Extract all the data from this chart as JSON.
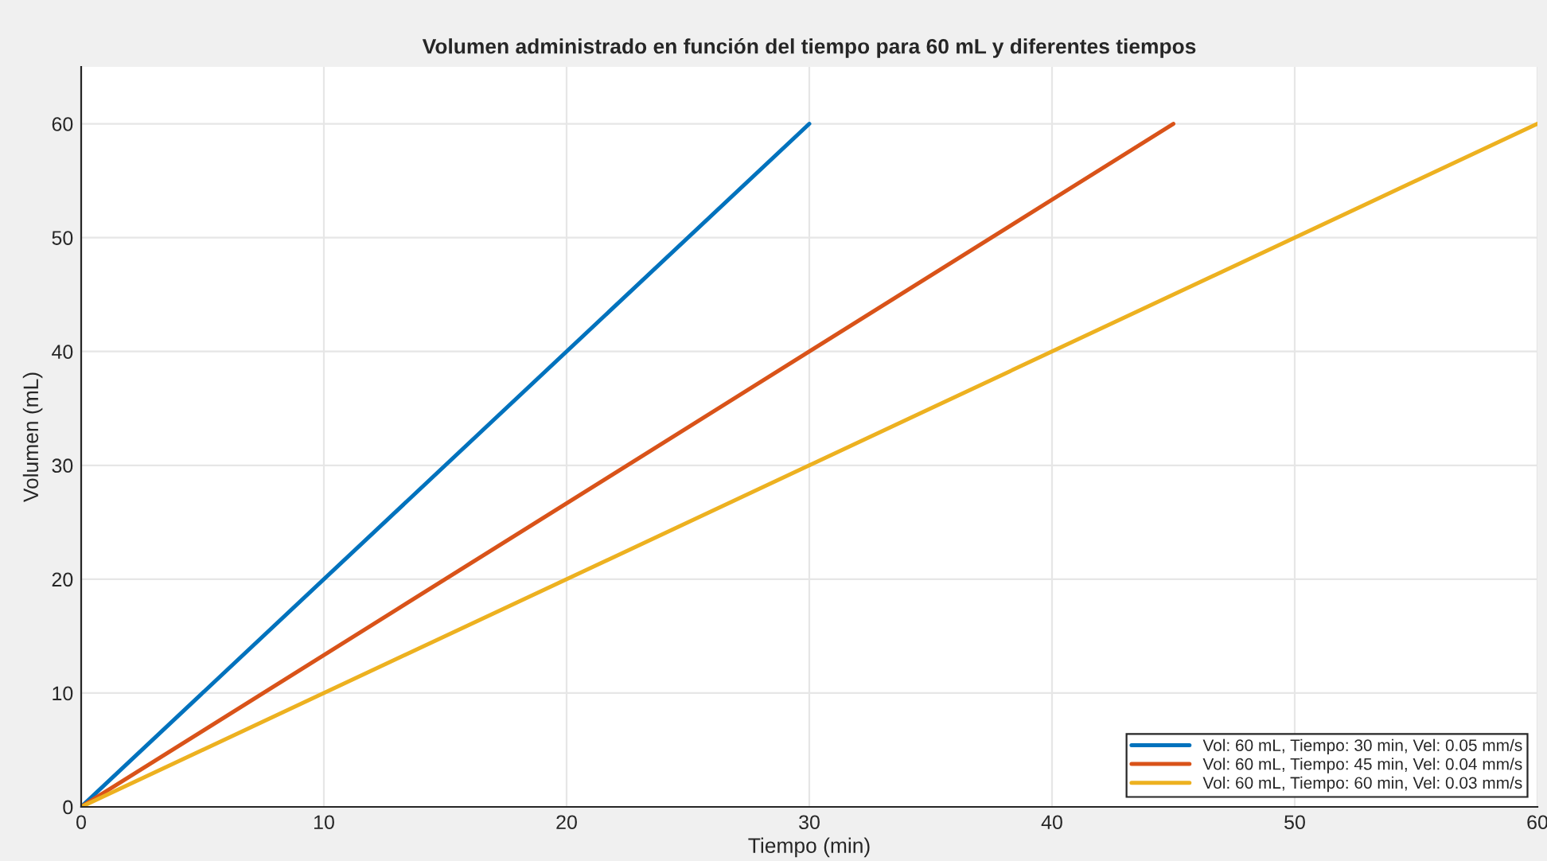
{
  "chart_data": {
    "type": "line",
    "title": "Volumen administrado en función del tiempo para 60 mL y diferentes tiempos",
    "xlabel": "Tiempo (min)",
    "ylabel": "Volumen (mL)",
    "series": [
      {
        "name": "Vol: 60 mL, Tiempo: 30 min, Vel: 0.05 mm/s",
        "color": "#0072bd",
        "x": [
          0,
          30
        ],
        "values": [
          0,
          60
        ]
      },
      {
        "name": "Vol: 60 mL, Tiempo: 45 min, Vel: 0.04 mm/s",
        "color": "#d95319",
        "x": [
          0,
          45
        ],
        "values": [
          0,
          60
        ]
      },
      {
        "name": "Vol: 60 mL, Tiempo: 60 min, Vel: 0.03 mm/s",
        "color": "#edb120",
        "x": [
          0,
          60
        ],
        "values": [
          0,
          60
        ]
      }
    ],
    "xlim": [
      0,
      60
    ],
    "xticks": [
      0,
      10,
      20,
      30,
      40,
      50,
      60
    ],
    "ylim": [
      0,
      65
    ],
    "yticks": [
      0,
      10,
      20,
      30,
      40,
      50,
      60
    ],
    "grid": true,
    "legend": "bottom right",
    "marker": "none",
    "line_style": "solid"
  }
}
